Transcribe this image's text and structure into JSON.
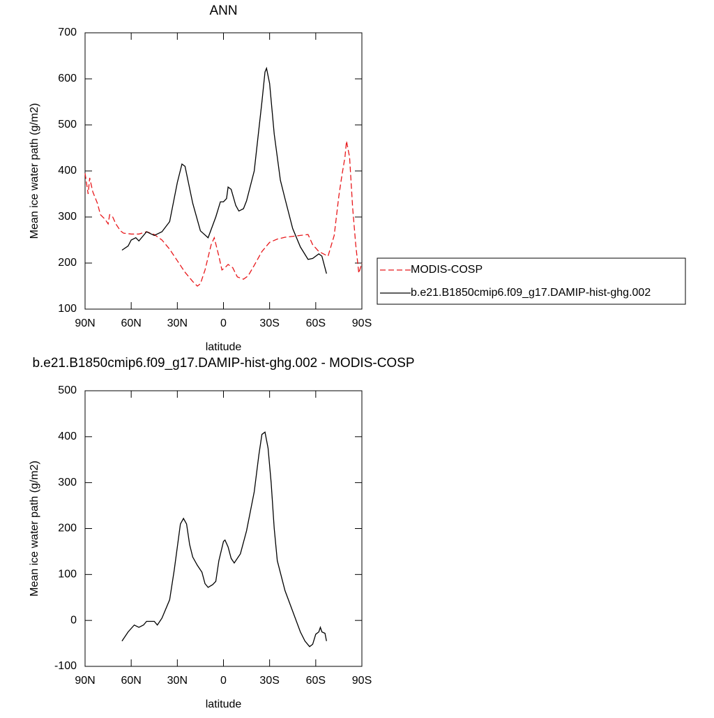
{
  "chart_data": [
    {
      "type": "line",
      "title": "ANN",
      "x_label": "latitude",
      "y_label": "Mean ice water path (g/m2)",
      "xlim": [
        90,
        -90
      ],
      "ylim": [
        100,
        700
      ],
      "xticks": [
        {
          "value": 90,
          "label": "90N"
        },
        {
          "value": 60,
          "label": "60N"
        },
        {
          "value": 30,
          "label": "30N"
        },
        0,
        {
          "value": -30,
          "label": "30S"
        },
        {
          "value": -60,
          "label": "60S"
        },
        {
          "value": -90,
          "label": "90S"
        }
      ],
      "yticks": [
        100,
        200,
        300,
        400,
        500,
        600,
        700
      ],
      "legend": "right",
      "series": [
        {
          "name": "MODIS-COSP",
          "color": "#e8171a",
          "linestyle": "dashed",
          "x": [
            90,
            88,
            87,
            85,
            82,
            80,
            77,
            75,
            74,
            72,
            70,
            67,
            65,
            60,
            55,
            50,
            45,
            40,
            35,
            30,
            25,
            20,
            17,
            15,
            12,
            8,
            6,
            3,
            1,
            -1,
            -3,
            -6,
            -9,
            -13,
            -16,
            -20,
            -25,
            -30,
            -35,
            -40,
            -45,
            -50,
            -55,
            -58,
            -62,
            -65,
            -68,
            -72,
            -75,
            -77,
            -79,
            -80,
            -82,
            -84,
            -86,
            -88,
            -90
          ],
          "values": [
            395,
            350,
            385,
            355,
            330,
            305,
            295,
            285,
            305,
            300,
            285,
            270,
            265,
            263,
            263,
            268,
            262,
            250,
            230,
            205,
            180,
            160,
            150,
            155,
            185,
            240,
            255,
            215,
            185,
            190,
            197,
            190,
            170,
            165,
            172,
            195,
            225,
            245,
            252,
            256,
            258,
            260,
            262,
            240,
            225,
            220,
            215,
            260,
            345,
            390,
            430,
            465,
            430,
            320,
            240,
            178,
            200
          ]
        },
        {
          "name": "b.e21.B1850cmip6.f09_g17.DAMIP-hist-ghg.002",
          "color": "#000000",
          "linestyle": "solid",
          "x": [
            66,
            62,
            60,
            57,
            55,
            50,
            45,
            40,
            35,
            30,
            27,
            25,
            20,
            15,
            10,
            5,
            2,
            0,
            -2,
            -3,
            -5,
            -8,
            -10,
            -13,
            -15,
            -20,
            -25,
            -27,
            -28,
            -30,
            -33,
            -37,
            -40,
            -45,
            -50,
            -55,
            -58,
            -62,
            -64,
            -67
          ],
          "values": [
            228,
            237,
            250,
            255,
            248,
            268,
            260,
            268,
            290,
            375,
            415,
            410,
            330,
            270,
            255,
            300,
            333,
            333,
            340,
            365,
            360,
            325,
            313,
            318,
            335,
            400,
            550,
            615,
            623,
            590,
            480,
            380,
            340,
            275,
            235,
            208,
            210,
            220,
            215,
            177
          ]
        }
      ]
    },
    {
      "type": "line",
      "title": "b.e21.B1850cmip6.f09_g17.DAMIP-hist-ghg.002 - MODIS-COSP",
      "x_label": "latitude",
      "y_label": "Mean ice water path (g/m2)",
      "xlim": [
        90,
        -90
      ],
      "ylim": [
        -100,
        500
      ],
      "xticks": [
        {
          "value": 90,
          "label": "90N"
        },
        {
          "value": 60,
          "label": "60N"
        },
        {
          "value": 30,
          "label": "30N"
        },
        0,
        {
          "value": -30,
          "label": "30S"
        },
        {
          "value": -60,
          "label": "60S"
        },
        {
          "value": -90,
          "label": "90S"
        }
      ],
      "yticks": [
        -100,
        0,
        100,
        200,
        300,
        400,
        500
      ],
      "series": [
        {
          "color": "#000000",
          "linestyle": "solid",
          "x": [
            66,
            62,
            58,
            55,
            52,
            50,
            45,
            43,
            40,
            35,
            32,
            30,
            28,
            26,
            24,
            22,
            20,
            17,
            14,
            12,
            10,
            7,
            5,
            3,
            0,
            -1,
            -3,
            -5,
            -7,
            -9,
            -11,
            -15,
            -20,
            -23,
            -25,
            -27,
            -29,
            -31,
            -33,
            -35,
            -40,
            -45,
            -50,
            -53,
            -56,
            -58,
            -60,
            -62,
            -63,
            -64,
            -66,
            -67
          ],
          "values": [
            -45,
            -25,
            -10,
            -15,
            -10,
            -2,
            -2,
            -10,
            5,
            45,
            110,
            160,
            210,
            222,
            210,
            165,
            138,
            120,
            105,
            80,
            72,
            78,
            85,
            130,
            172,
            175,
            160,
            135,
            125,
            135,
            145,
            195,
            280,
            360,
            405,
            410,
            375,
            300,
            200,
            130,
            65,
            20,
            -25,
            -45,
            -57,
            -52,
            -30,
            -25,
            -15,
            -25,
            -28,
            -45
          ]
        }
      ]
    }
  ]
}
